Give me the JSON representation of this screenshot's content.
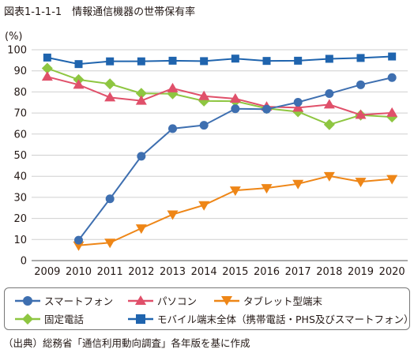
{
  "title": "図表1-1-1-1　情報通信機器の世帯保有率",
  "source": "（出典）総務省「通信利用動向調査」各年版を基に作成",
  "chart_data": {
    "type": "line",
    "ylabel": "(%)",
    "ylim": [
      0,
      100
    ],
    "yticks": [
      0,
      10,
      20,
      30,
      40,
      50,
      60,
      70,
      80,
      90,
      100
    ],
    "grid": true,
    "legend_position": "bottom",
    "x": [
      "2009",
      "2010",
      "2011",
      "2012",
      "2013",
      "2014",
      "2015",
      "2016",
      "2017",
      "2018",
      "2019",
      "2020"
    ],
    "series": [
      {
        "name": "スマートフォン",
        "color": "#3e6fb0",
        "marker": "circle",
        "values": [
          null,
          9.7,
          29.3,
          49.5,
          62.6,
          64.2,
          72.0,
          71.8,
          75.1,
          79.2,
          83.4,
          86.8
        ]
      },
      {
        "name": "パソコン",
        "color": "#e0506a",
        "marker": "triangle-up",
        "values": [
          87.2,
          83.4,
          77.4,
          75.8,
          81.7,
          78.0,
          76.8,
          73.0,
          72.5,
          74.0,
          69.1,
          70.1
        ]
      },
      {
        "name": "タブレット型端末",
        "color": "#ee8617",
        "marker": "triangle-down",
        "values": [
          null,
          7.2,
          8.5,
          15.3,
          21.9,
          26.3,
          33.3,
          34.4,
          36.4,
          40.1,
          37.4,
          38.7
        ]
      },
      {
        "name": "固定電話",
        "color": "#8ec641",
        "marker": "diamond",
        "values": [
          91.2,
          85.8,
          83.8,
          79.3,
          79.1,
          75.7,
          75.6,
          72.2,
          70.6,
          64.5,
          69.0,
          68.1
        ]
      },
      {
        "name": "モバイル端末全体（携帯電話・PHS及びスマートフォン）",
        "color": "#1f64ae",
        "marker": "square",
        "values": [
          96.3,
          93.2,
          94.5,
          94.5,
          94.8,
          94.6,
          95.8,
          94.7,
          94.8,
          95.7,
          96.1,
          96.8
        ]
      }
    ]
  }
}
